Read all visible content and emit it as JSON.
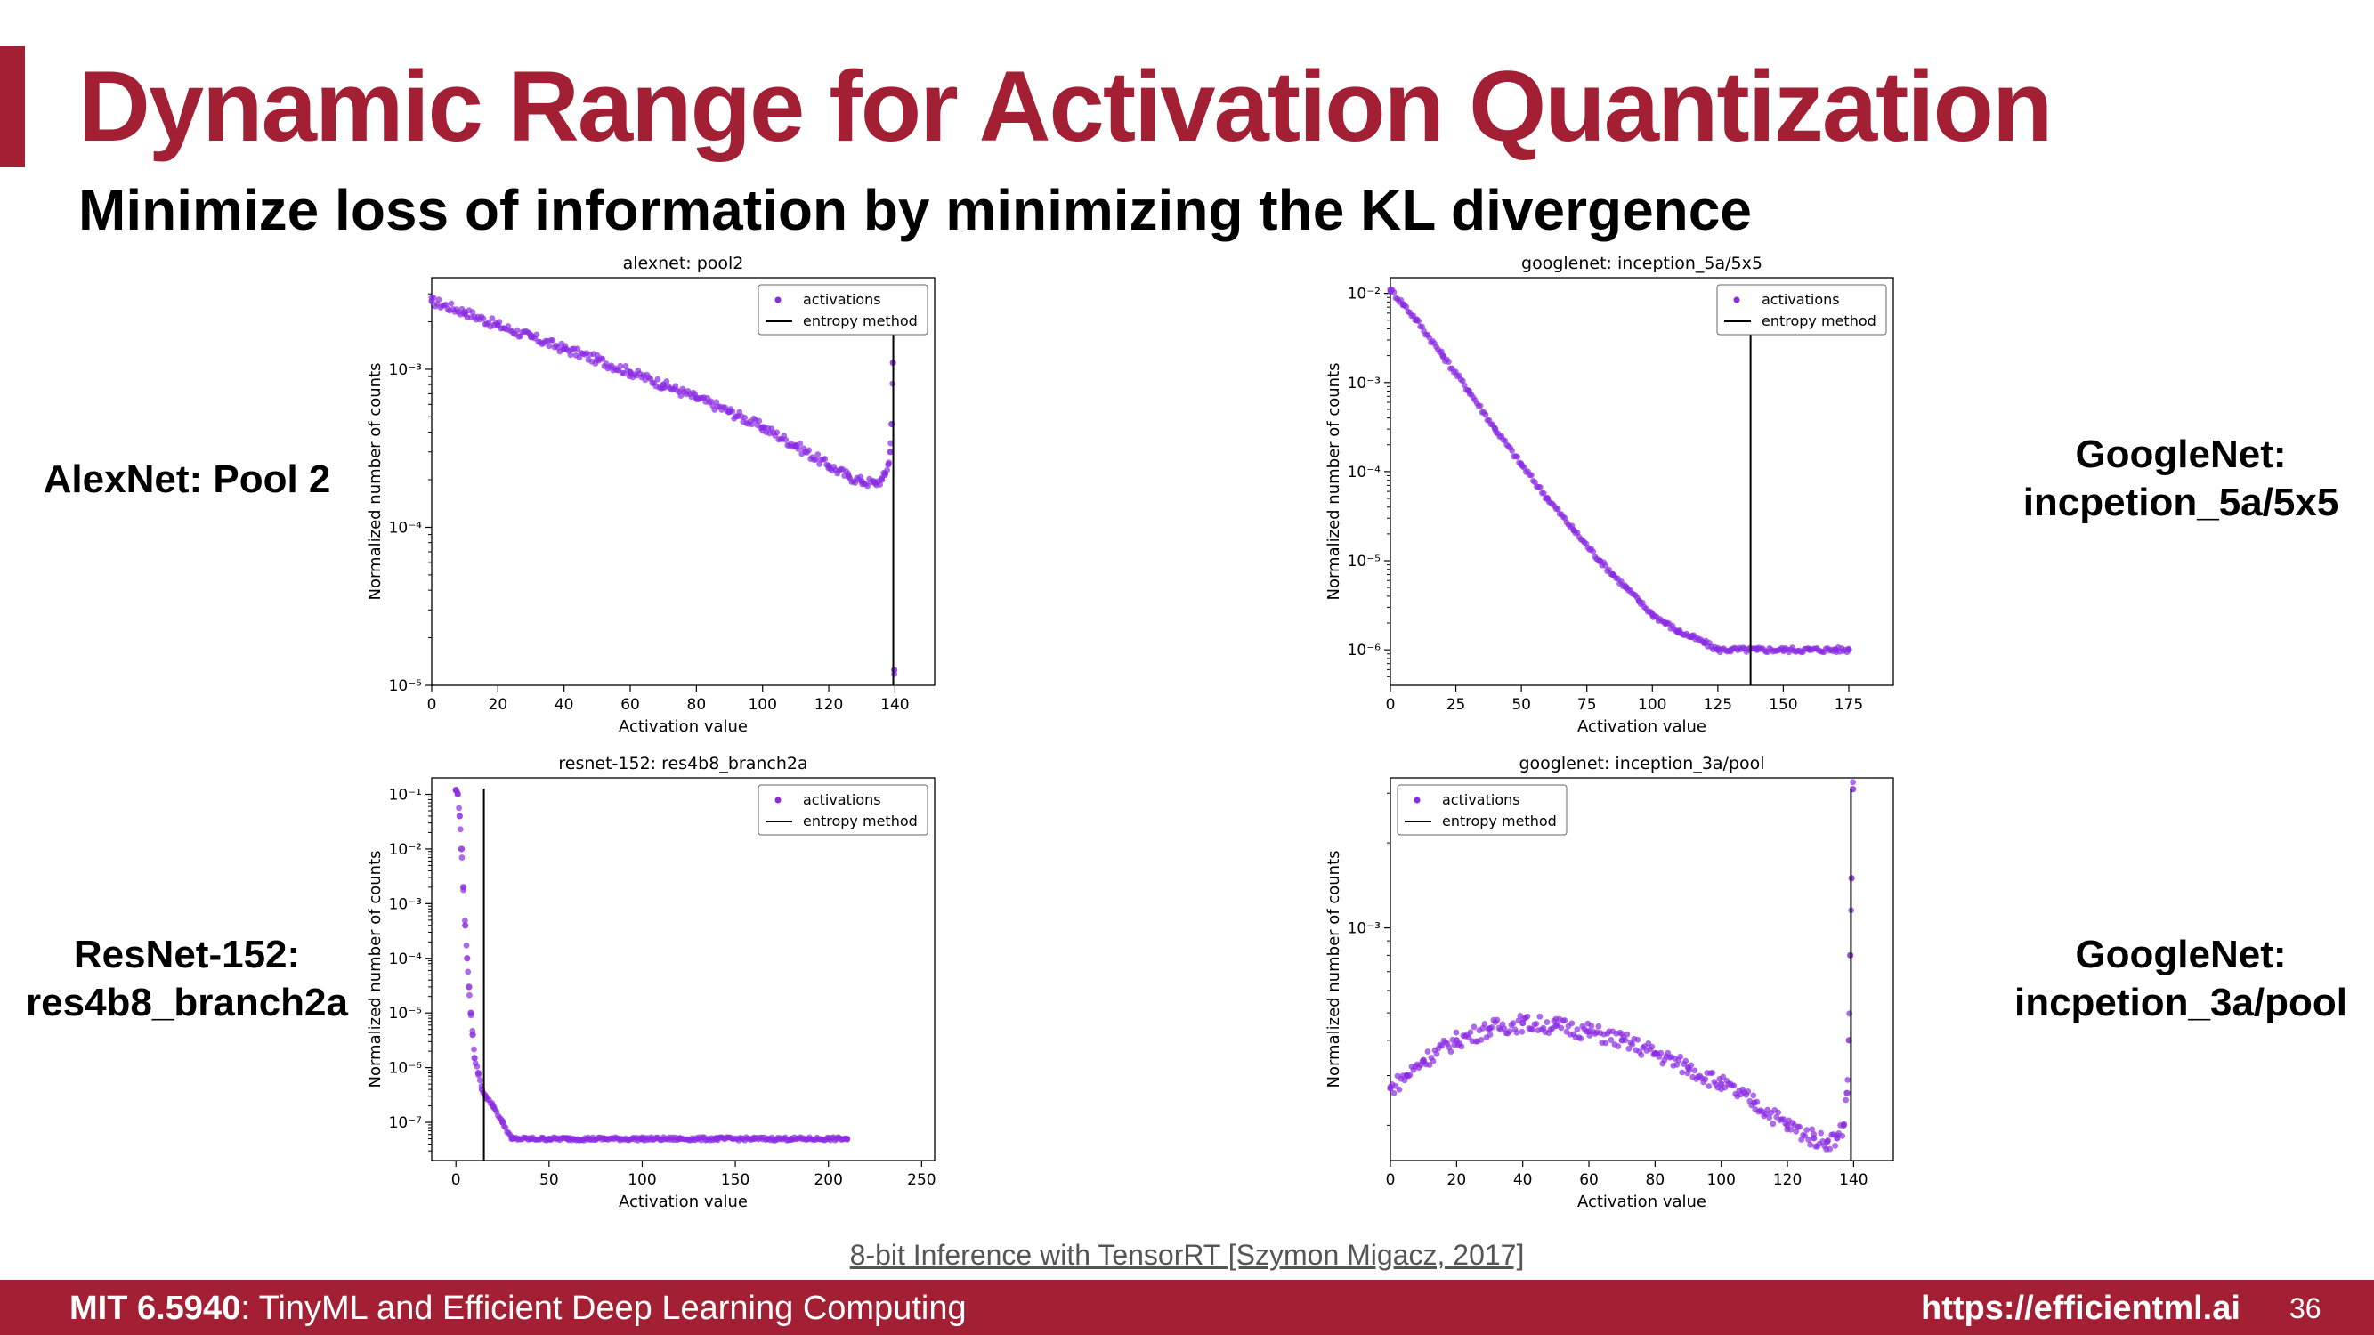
{
  "slide": {
    "title": "Dynamic Range for Activation Quantization",
    "subtitle": "Minimize loss of information by minimizing the KL divergence",
    "side_labels": [
      "AlexNet: Pool 2",
      "GoogleNet:\nincpetion_5a/5x5",
      "ResNet-152:\nres4b8_branch2a",
      "GoogleNet:\nincpetion_3a/pool"
    ],
    "citation": "8-bit Inference with TensorRT [Szymon Migacz, 2017]",
    "footer": {
      "course": "MIT 6.5940",
      "course_title": ": TinyML and Efficient Deep Learning Computing",
      "url": "https://efficientml.ai",
      "page": "36"
    }
  },
  "colors": {
    "accent": "#a31f34",
    "points": "#8a2be2",
    "line": "#000000"
  },
  "chart_data": [
    {
      "type": "scatter",
      "title": "alexnet: pool2",
      "xlabel": "Activation value",
      "ylabel": "Normalized number of counts",
      "yscale": "log",
      "xlim": [
        0,
        152
      ],
      "ylim": [
        1e-05,
        0.0038
      ],
      "xticks": [
        0,
        20,
        40,
        60,
        80,
        100,
        120,
        140
      ],
      "xtick_labels": [
        "0",
        "20",
        "40",
        "60",
        "80",
        "100",
        "120",
        "140"
      ],
      "yticks": [
        1e-05,
        0.0001,
        0.001
      ],
      "ytick_labels": [
        "10⁻⁵",
        "10⁻⁴",
        "10⁻³"
      ],
      "legend": {
        "position": "top-right",
        "entries": [
          "activations",
          "entropy method"
        ]
      },
      "series": [
        {
          "name": "activations",
          "x": [
            0,
            10,
            20,
            30,
            40,
            50,
            60,
            70,
            80,
            90,
            100,
            110,
            120,
            126,
            130,
            134,
            136,
            137,
            138,
            138.6,
            139,
            139.4,
            139.8
          ],
          "y": [
            0.0027,
            0.0023,
            0.0019,
            0.0016,
            0.00135,
            0.00115,
            0.00096,
            0.0008,
            0.00066,
            0.00054,
            0.00043,
            0.00033,
            0.000245,
            0.00021,
            0.000195,
            0.00019,
            0.0002,
            0.000215,
            0.00025,
            0.0003,
            0.00045,
            0.0011,
            1.25e-05
          ]
        },
        {
          "name": "entropy method",
          "type": "vline",
          "x": 139.5
        }
      ]
    },
    {
      "type": "scatter",
      "title": "googlenet: inception_5a/5x5",
      "xlabel": "Activation value",
      "ylabel": "Normalized number of counts",
      "yscale": "log",
      "xlim": [
        0,
        192
      ],
      "ylim": [
        4e-07,
        0.015
      ],
      "xticks": [
        0,
        25,
        50,
        75,
        100,
        125,
        150,
        175
      ],
      "xtick_labels": [
        "0",
        "25",
        "50",
        "75",
        "100",
        "125",
        "150",
        "175"
      ],
      "yticks": [
        1e-06,
        1e-05,
        0.0001,
        0.001,
        0.01
      ],
      "ytick_labels": [
        "10⁻⁶",
        "10⁻⁵",
        "10⁻⁴",
        "10⁻³",
        "10⁻²"
      ],
      "legend": {
        "position": "top-right",
        "entries": [
          "activations",
          "entropy method"
        ]
      },
      "series": [
        {
          "name": "activations",
          "x": [
            0,
            5,
            10,
            20,
            30,
            40,
            50,
            60,
            70,
            80,
            85,
            90,
            95,
            100,
            105,
            110,
            115,
            120,
            125,
            130,
            140,
            150,
            160,
            170,
            175
          ],
          "y": [
            0.011,
            0.0075,
            0.005,
            0.002,
            0.0008,
            0.0003,
            0.00012,
            5e-05,
            2.2e-05,
            1e-05,
            7e-06,
            5e-06,
            3.5e-06,
            2.5e-06,
            2e-06,
            1.6e-06,
            1.4e-06,
            1.2e-06,
            1e-06,
            1e-06,
            1e-06,
            1e-06,
            1e-06,
            1e-06,
            1e-06
          ]
        },
        {
          "name": "entropy method",
          "type": "vline",
          "x": 137.5
        }
      ]
    },
    {
      "type": "scatter",
      "title": "resnet-152: res4b8_branch2a",
      "xlabel": "Activation value",
      "ylabel": "Normalized number of counts",
      "yscale": "log",
      "xlim": [
        -13,
        257
      ],
      "ylim": [
        2e-08,
        0.2
      ],
      "xticks": [
        0,
        50,
        100,
        150,
        200,
        250
      ],
      "xtick_labels": [
        "0",
        "50",
        "100",
        "150",
        "200",
        "250"
      ],
      "yticks": [
        1e-07,
        1e-06,
        1e-05,
        0.0001,
        0.001,
        0.01,
        0.1
      ],
      "ytick_labels": [
        "10⁻⁷",
        "10⁻⁶",
        "10⁻⁵",
        "10⁻⁴",
        "10⁻³",
        "10⁻²",
        "10⁻¹"
      ],
      "legend": {
        "position": "top-right",
        "entries": [
          "activations",
          "entropy method"
        ]
      },
      "series": [
        {
          "name": "activations",
          "x": [
            0,
            1,
            2,
            3,
            4,
            5,
            6,
            7,
            8,
            9,
            10,
            12,
            14,
            16,
            20,
            25,
            30,
            40,
            50,
            60,
            80,
            100,
            120,
            140,
            160,
            180,
            200,
            210
          ],
          "y": [
            0.12,
            0.1,
            0.04,
            0.01,
            0.002,
            0.0004,
            0.0001,
            3e-05,
            1e-05,
            4e-06,
            1.5e-06,
            8e-07,
            4e-07,
            3e-07,
            2e-07,
            1e-07,
            5e-08,
            5e-08,
            5e-08,
            5e-08,
            5e-08,
            5e-08,
            5e-08,
            5e-08,
            5e-08,
            5e-08,
            5e-08,
            5e-08
          ]
        },
        {
          "name": "entropy method",
          "type": "vline",
          "x": 15
        }
      ]
    },
    {
      "type": "scatter",
      "title": "googlenet: inception_3a/pool",
      "xlabel": "Activation value",
      "ylabel": "Normalized number of counts",
      "yscale": "log",
      "xlim": [
        0,
        152
      ],
      "ylim": [
        0.00015,
        0.0034
      ],
      "xticks": [
        0,
        20,
        40,
        60,
        80,
        100,
        120,
        140
      ],
      "xtick_labels": [
        "0",
        "20",
        "40",
        "60",
        "80",
        "100",
        "120",
        "140"
      ],
      "yticks": [
        0.001
      ],
      "ytick_labels": [
        "10⁻³"
      ],
      "legend": {
        "position": "top-left",
        "entries": [
          "activations",
          "entropy method"
        ]
      },
      "series": [
        {
          "name": "activations",
          "x": [
            0,
            5,
            10,
            20,
            30,
            40,
            50,
            60,
            70,
            80,
            90,
            100,
            110,
            120,
            128,
            132,
            135,
            137,
            138,
            138.6,
            139,
            139.4,
            139.8
          ],
          "y": [
            0.00027,
            0.0003,
            0.00034,
            0.0004,
            0.00044,
            0.00046,
            0.00045,
            0.00043,
            0.0004,
            0.00036,
            0.00032,
            0.00028,
            0.00024,
            0.0002,
            0.00018,
            0.000175,
            0.00018,
            0.0002,
            0.00026,
            0.0004,
            0.0008,
            0.0015,
            0.0031
          ]
        },
        {
          "name": "entropy method",
          "type": "vline",
          "x": 139.2
        }
      ]
    }
  ]
}
